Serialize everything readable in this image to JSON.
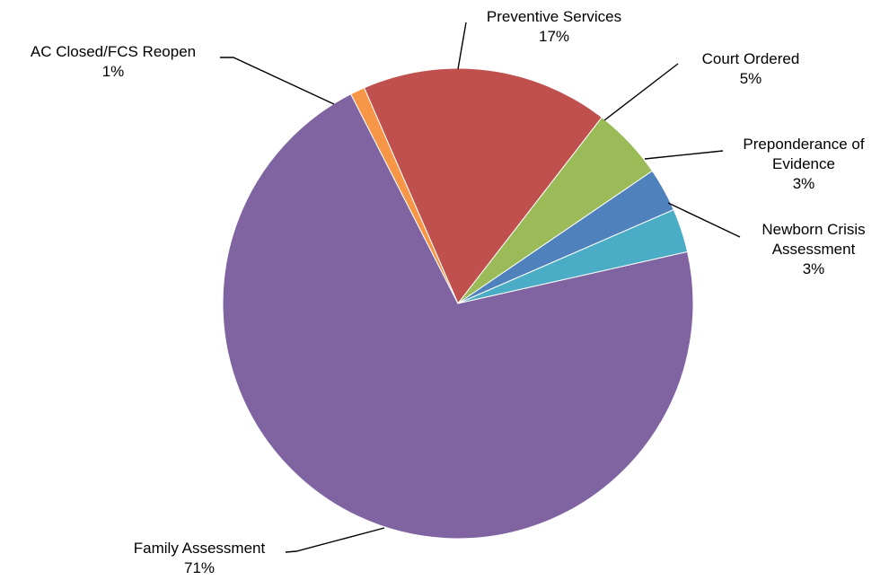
{
  "chart_data": {
    "type": "pie",
    "title": "",
    "slices": [
      {
        "label_lines": [
          "Preventive Services"
        ],
        "pct_label": "17%",
        "value": 17,
        "color": "#C0504D"
      },
      {
        "label_lines": [
          "Court Ordered"
        ],
        "pct_label": "5%",
        "value": 5,
        "color": "#9BBB59"
      },
      {
        "label_lines": [
          "Preponderance of",
          "Evidence"
        ],
        "pct_label": "3%",
        "value": 3,
        "color": "#4F81BD"
      },
      {
        "label_lines": [
          "Newborn Crisis",
          "Assessment"
        ],
        "pct_label": "3%",
        "value": 3,
        "color": "#4BACC6"
      },
      {
        "label_lines": [
          "Family Assessment"
        ],
        "pct_label": "71%",
        "value": 71,
        "color": "#8064A2"
      },
      {
        "label_lines": [
          "AC Closed/FCS Reopen"
        ],
        "pct_label": "1%",
        "value": 1,
        "color": "#F79646"
      }
    ],
    "start_angle_deg": -23.5,
    "legend": "none"
  }
}
